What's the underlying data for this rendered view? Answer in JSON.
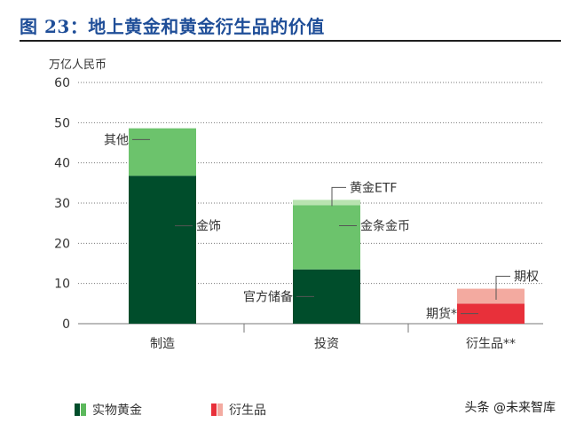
{
  "title": "图 23：地上黄金和黄金衍生品的价值",
  "legend": {
    "physical_label": "实物黄金",
    "physical_colors": [
      "#004d2b",
      "#5cb85c"
    ],
    "derivative_label": "衍生品",
    "derivative_colors": [
      "#e8303a",
      "#f3aaa0"
    ]
  },
  "watermark": "头条 @未来智库",
  "chart_data": {
    "type": "bar",
    "stacked": true,
    "ylabel": "万亿人民币",
    "ylim": [
      0,
      60
    ],
    "yticks": [
      0,
      10,
      20,
      30,
      40,
      50,
      60
    ],
    "grid": "dotted-horizontal",
    "categories": [
      "制造",
      "投资",
      "衍生品**"
    ],
    "bars": [
      {
        "category": "制造",
        "segments": [
          {
            "name": "金饰",
            "value": 36.8,
            "color": "#004d2b"
          },
          {
            "name": "其他",
            "value": 11.8,
            "color": "#6cc36c"
          }
        ]
      },
      {
        "category": "投资",
        "segments": [
          {
            "name": "官方储备",
            "value": 13.5,
            "color": "#004d2b"
          },
          {
            "name": "金条金币",
            "value": 16.0,
            "color": "#6cc36c"
          },
          {
            "name": "黄金ETF",
            "value": 1.3,
            "color": "#b8e3b0"
          }
        ]
      },
      {
        "category": "衍生品**",
        "segments": [
          {
            "name": "期货*",
            "value": 5.0,
            "color": "#e8303a"
          },
          {
            "name": "期权",
            "value": 3.7,
            "color": "#f3aaa0"
          }
        ]
      }
    ],
    "annotations": [
      {
        "text": "其他",
        "bar": 0,
        "segment": 1,
        "side": "left"
      },
      {
        "text": "金饰",
        "bar": 0,
        "segment": 0,
        "side": "right"
      },
      {
        "text": "黄金ETF",
        "bar": 1,
        "segment": 2,
        "side": "right-up"
      },
      {
        "text": "金条金币",
        "bar": 1,
        "segment": 1,
        "side": "right"
      },
      {
        "text": "官方储备",
        "bar": 1,
        "segment": 0,
        "side": "left"
      },
      {
        "text": "期权",
        "bar": 2,
        "segment": 1,
        "side": "right-up"
      },
      {
        "text": "期货*",
        "bar": 2,
        "segment": 0,
        "side": "left"
      }
    ]
  }
}
